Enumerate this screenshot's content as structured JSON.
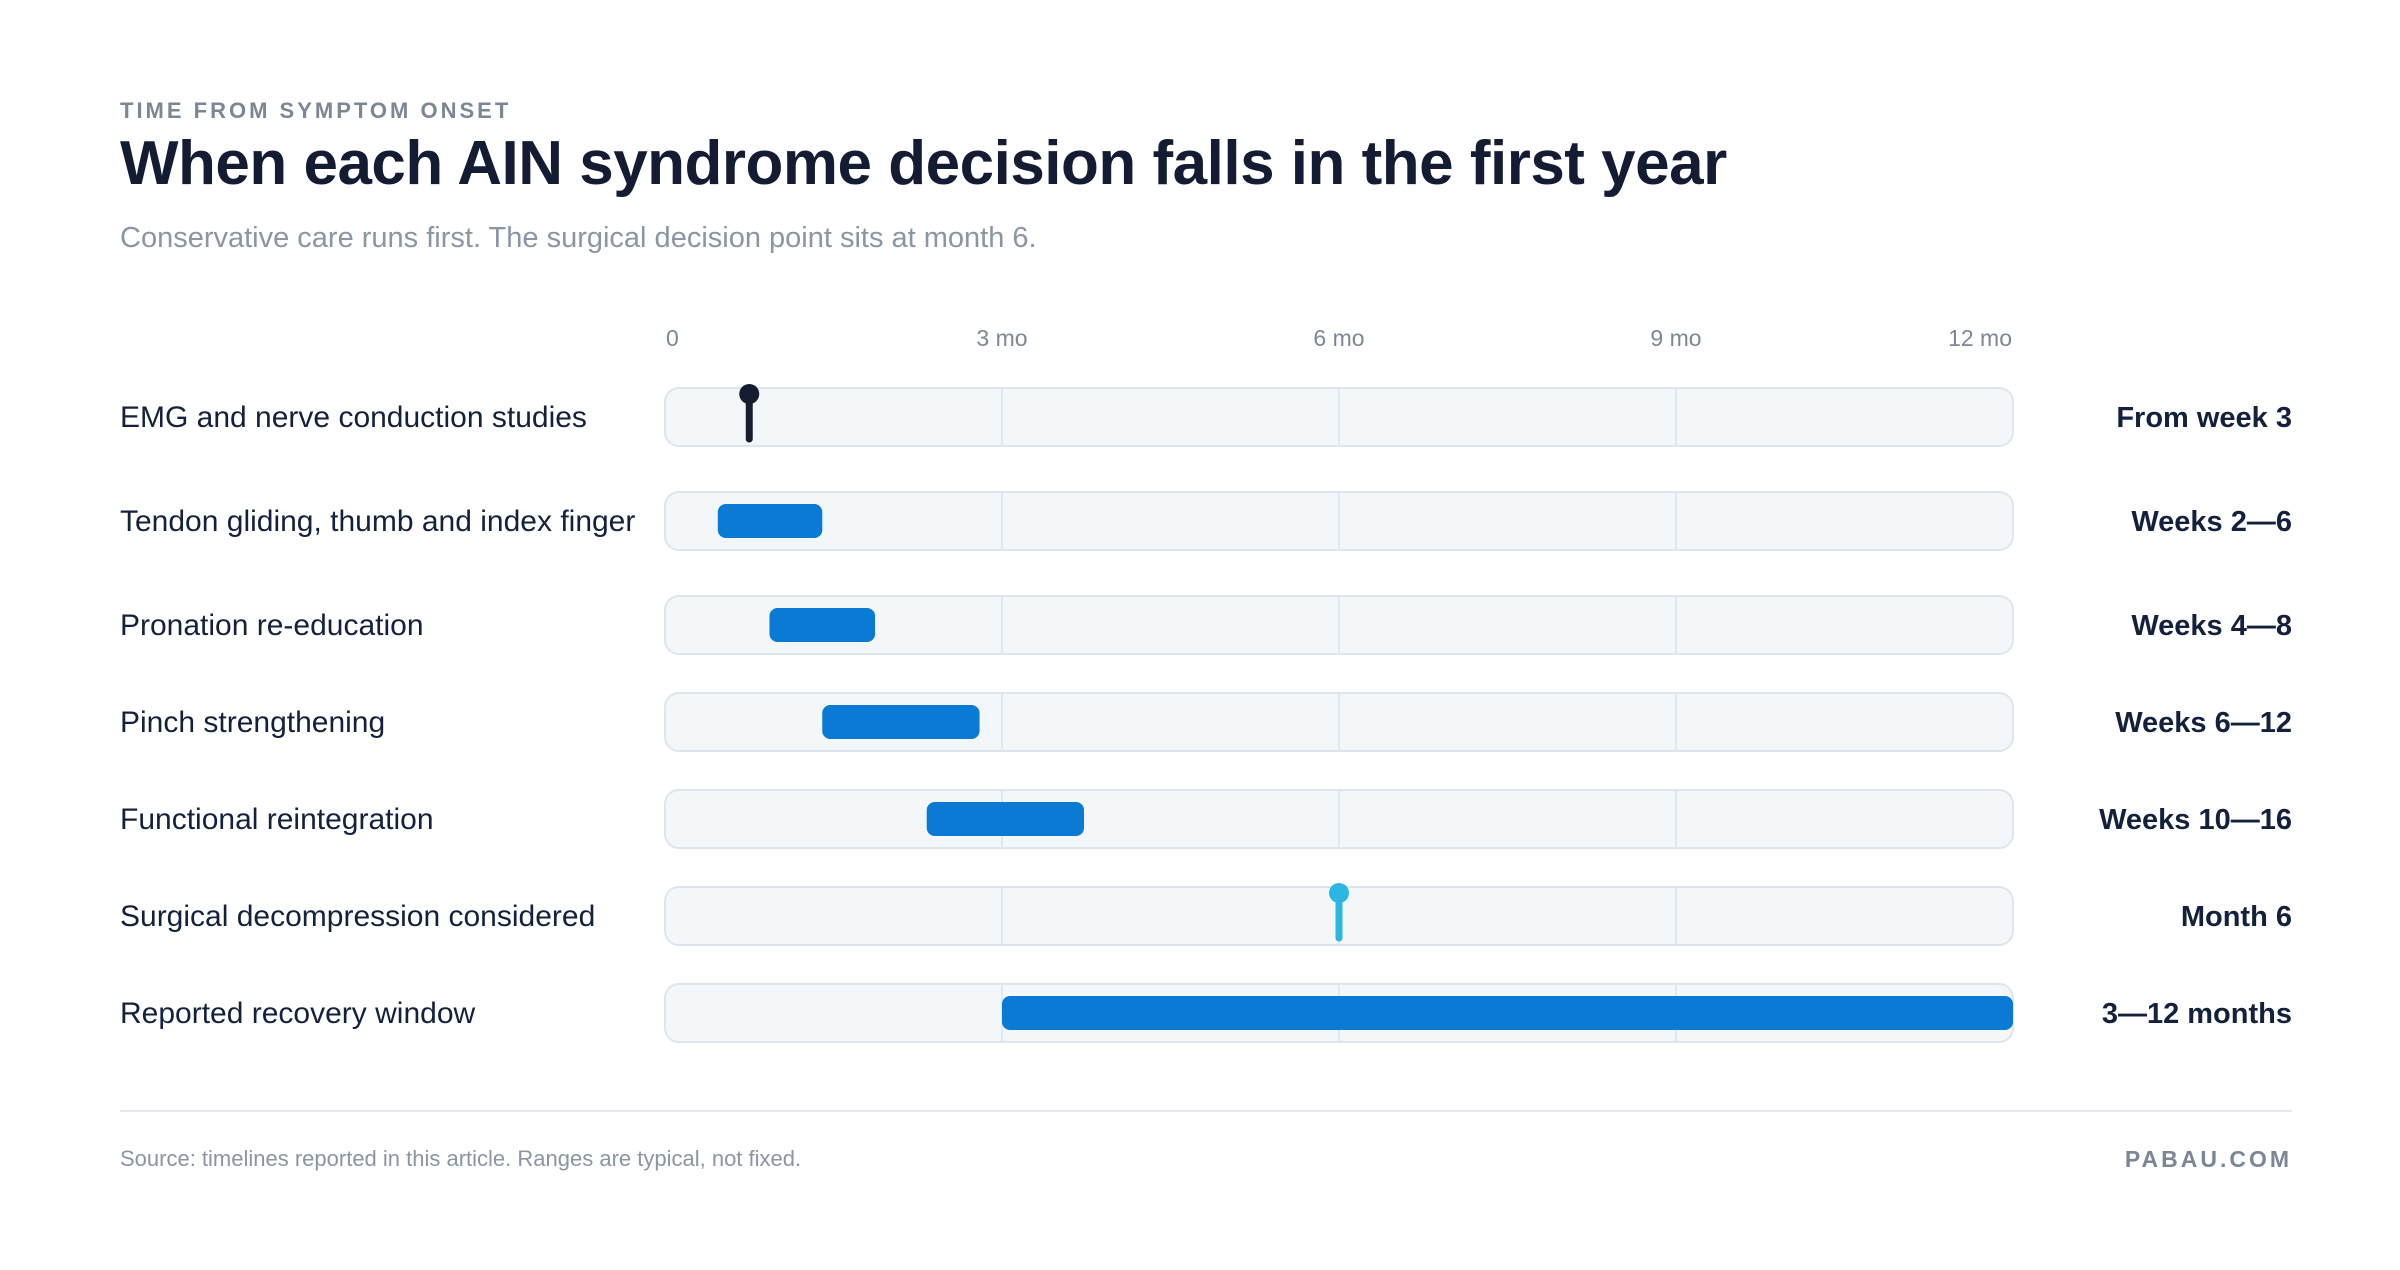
{
  "header": {
    "eyebrow": "TIME FROM SYMPTOM ONSET",
    "title": "When each AIN syndrome decision falls in the first year",
    "subtitle": "Conservative care runs first. The surgical decision point sits at month 6."
  },
  "footer": {
    "source": "Source: timelines reported in this article. Ranges are typical, not fixed.",
    "brand": "PABAU.COM"
  },
  "colors": {
    "range": "#0a7ad4",
    "milestone_dark": "#151d2e",
    "milestone_accent": "#2bb7e2",
    "track": "#f4f7fa",
    "track_border": "#dfe5ec",
    "grid": "#e3e8ee",
    "tick_text": "#7c8796",
    "label_text": "#14213d"
  },
  "chart_data": {
    "type": "timeline",
    "x_unit": "months",
    "xlim": [
      0,
      12
    ],
    "ticks": [
      {
        "value": 0,
        "label": "0"
      },
      {
        "value": 3,
        "label": "3 mo"
      },
      {
        "value": 6,
        "label": "6 mo"
      },
      {
        "value": 9,
        "label": "9 mo"
      },
      {
        "value": 12,
        "label": "12 mo"
      }
    ],
    "rows": [
      {
        "label": "EMG and nerve conduction studies",
        "kind": "milestone",
        "at": 0.75,
        "style": "dark",
        "value_label": "From week 3"
      },
      {
        "label": "Tendon gliding, thumb and index finger",
        "kind": "range",
        "start": 0.47,
        "end": 1.4,
        "value_label": "Weeks 2—6"
      },
      {
        "label": "Pronation re-education",
        "kind": "range",
        "start": 0.93,
        "end": 1.87,
        "value_label": "Weeks 4—8"
      },
      {
        "label": "Pinch strengthening",
        "kind": "range",
        "start": 1.4,
        "end": 2.8,
        "value_label": "Weeks 6—12"
      },
      {
        "label": "Functional reintegration",
        "kind": "range",
        "start": 2.33,
        "end": 3.73,
        "value_label": "Weeks 10—16"
      },
      {
        "label": "Surgical decompression considered",
        "kind": "milestone",
        "at": 6,
        "style": "accent",
        "value_label": "Month 6"
      },
      {
        "label": "Reported recovery window",
        "kind": "range",
        "start": 3,
        "end": 12,
        "value_label": "3—12 months"
      }
    ]
  }
}
